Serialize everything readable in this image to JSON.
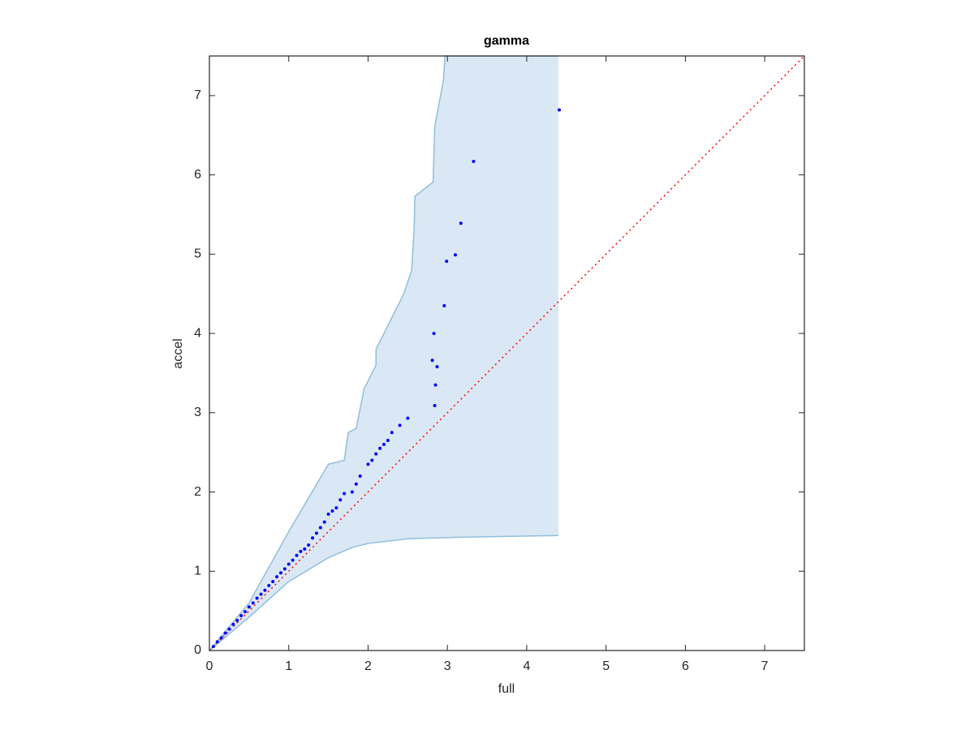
{
  "chart_data": {
    "type": "scatter",
    "title": "gamma",
    "x_label": "full",
    "y_label": "accel",
    "xlim": [
      0,
      7.5
    ],
    "ylim": [
      0,
      7.5
    ],
    "xticks": [
      0,
      1,
      2,
      3,
      4,
      5,
      6,
      7
    ],
    "yticks": [
      0,
      1,
      2,
      3,
      4,
      5,
      6,
      7
    ],
    "band": {
      "color": "#d9e8f4",
      "edge_color": "#8fbfdc",
      "upper": {
        "x": [
          0,
          0.5,
          1,
          1.5,
          1.7,
          1.75,
          1.85,
          1.95,
          2.1,
          2.1,
          2.2,
          2.3,
          2.45,
          2.55,
          2.58,
          2.59,
          2.82,
          2.84,
          2.95,
          2.97,
          4.4
        ],
        "y": [
          0,
          0.6,
          1.5,
          2.35,
          2.4,
          2.75,
          2.8,
          3.3,
          3.6,
          3.8,
          4.0,
          4.2,
          4.5,
          4.8,
          5.3,
          5.73,
          5.91,
          6.61,
          7.19,
          7.5,
          7.5
        ]
      },
      "lower": {
        "x": [
          0,
          0.5,
          1,
          1.5,
          1.8,
          2.0,
          2.5,
          3.2,
          4.4
        ],
        "y": [
          0,
          0.42,
          0.87,
          1.17,
          1.3,
          1.35,
          1.41,
          1.43,
          1.45
        ]
      }
    },
    "reference_line": {
      "x": [
        0,
        7.5
      ],
      "y": [
        0,
        7.5
      ],
      "color": "#ff0000"
    },
    "series": [
      {
        "name": "accel",
        "color": "#0000ff",
        "x": [
          0.05,
          0.1,
          0.15,
          0.2,
          0.25,
          0.3,
          0.35,
          0.4,
          0.45,
          0.5,
          0.55,
          0.6,
          0.65,
          0.7,
          0.75,
          0.8,
          0.85,
          0.9,
          0.95,
          1.0,
          1.05,
          1.1,
          1.15,
          1.2,
          1.25,
          1.3,
          1.35,
          1.4,
          1.45,
          1.5,
          1.55,
          1.6,
          1.65,
          1.7,
          1.8,
          1.85,
          1.9,
          2.0,
          2.05,
          2.1,
          2.15,
          2.2,
          2.25,
          2.3,
          2.4,
          2.5,
          2.84,
          2.85,
          2.87,
          2.81,
          2.83,
          2.96,
          2.99,
          3.1,
          3.17,
          3.33,
          4.41
        ],
        "y": [
          0.05,
          0.11,
          0.16,
          0.22,
          0.27,
          0.33,
          0.38,
          0.44,
          0.49,
          0.55,
          0.6,
          0.66,
          0.71,
          0.76,
          0.82,
          0.87,
          0.93,
          0.98,
          1.03,
          1.09,
          1.14,
          1.2,
          1.25,
          1.28,
          1.33,
          1.42,
          1.48,
          1.55,
          1.62,
          1.72,
          1.76,
          1.8,
          1.9,
          1.98,
          2.0,
          2.1,
          2.2,
          2.35,
          2.4,
          2.48,
          2.55,
          2.6,
          2.65,
          2.75,
          2.84,
          2.93,
          3.09,
          3.35,
          3.58,
          3.66,
          4.0,
          4.35,
          4.91,
          4.99,
          5.39,
          6.17,
          6.82
        ]
      }
    ]
  }
}
